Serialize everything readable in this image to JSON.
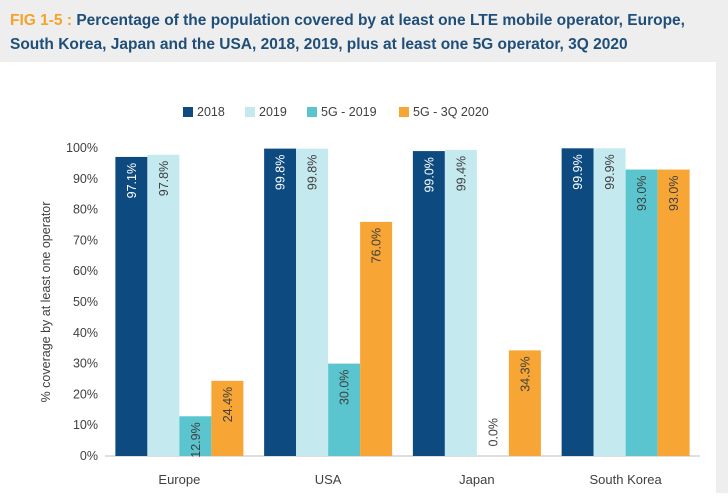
{
  "header": {
    "fig_label": "FIG 1-5 :",
    "title": "Percentage of the population covered by at least one LTE mobile operator, Europe, South Korea, Japan and the USA, 2018, 2019, plus at least one 5G operator, 3Q 2020"
  },
  "chart_data": {
    "type": "bar",
    "categories": [
      "Europe",
      "USA",
      "Japan",
      "South Korea"
    ],
    "series": [
      {
        "name": "2018",
        "color": "#0c4a80",
        "values": [
          97.1,
          99.8,
          99.0,
          99.9
        ],
        "labels": [
          "97.1%",
          "99.8%",
          "99.0%",
          "99.9%"
        ]
      },
      {
        "name": "2019",
        "color": "#c4e9ee",
        "values": [
          97.8,
          99.8,
          99.4,
          99.9
        ],
        "labels": [
          "97.8%",
          "99.8%",
          "99.4%",
          "99.9%"
        ]
      },
      {
        "name": "5G - 2019",
        "color": "#5bc5cf",
        "values": [
          12.9,
          30.0,
          0.0,
          93.0
        ],
        "labels": [
          "12.9%",
          "30.0%",
          "0.0%",
          "93.0%"
        ]
      },
      {
        "name": "5G - 3Q 2020",
        "color": "#f7a535",
        "values": [
          24.4,
          76.0,
          34.3,
          93.0
        ],
        "labels": [
          "24.4%",
          "76.0%",
          "34.3%",
          "93.0%"
        ]
      }
    ],
    "ylabel": "% coverage by at least one operator",
    "ylim": [
      0,
      100
    ],
    "yticks": [
      "0%",
      "10%",
      "20%",
      "30%",
      "40%",
      "50%",
      "60%",
      "70%",
      "80%",
      "90%",
      "100%"
    ],
    "grid": false,
    "legend_position": "top-center",
    "label_orientation": "vertical"
  }
}
